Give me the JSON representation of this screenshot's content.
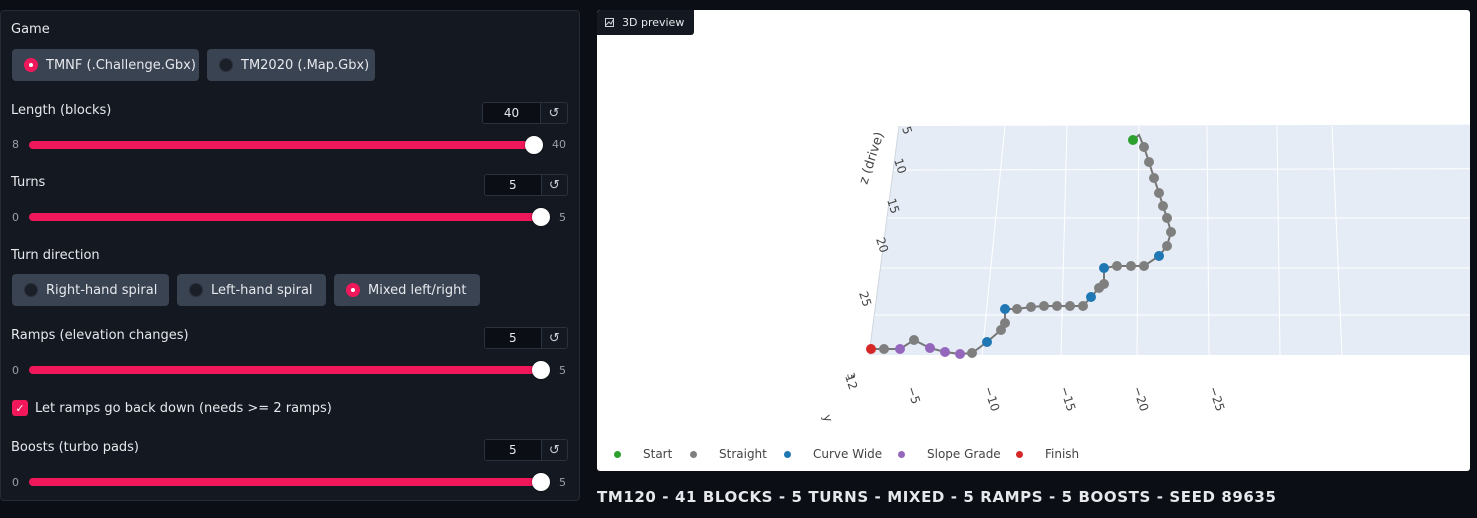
{
  "game": {
    "label": "Game",
    "options": [
      {
        "label": "TMNF (.Challenge.Gbx)",
        "selected": true
      },
      {
        "label": "TM2020 (.Map.Gbx)",
        "selected": false
      }
    ]
  },
  "length": {
    "label": "Length (blocks)",
    "value": "40",
    "min": "8",
    "max": "40",
    "fraction": 1.0
  },
  "turns": {
    "label": "Turns",
    "value": "5",
    "min": "0",
    "max": "5",
    "fraction": 1.0
  },
  "turn_direction": {
    "label": "Turn direction",
    "options": [
      {
        "label": "Right-hand spiral",
        "selected": false
      },
      {
        "label": "Left-hand spiral",
        "selected": false
      },
      {
        "label": "Mixed left/right",
        "selected": true
      }
    ]
  },
  "ramps": {
    "label": "Ramps (elevation changes)",
    "value": "5",
    "min": "0",
    "max": "5",
    "fraction": 1.0
  },
  "ramps_down": {
    "label": "Let ramps go back down (needs >= 2 ramps)",
    "checked": true
  },
  "boosts": {
    "label": "Boosts (turbo pads)",
    "value": "5",
    "min": "0",
    "max": "5",
    "fraction": 1.0
  },
  "reset_icon": "refresh-icon",
  "preview": {
    "tab_label": "3D preview",
    "icon": "chart-icon",
    "z_axis_title": "z (drive)",
    "z_ticks": [
      "5",
      "10",
      "15",
      "20",
      "25"
    ],
    "x_ticks": [
      "−5",
      "−10",
      "−15",
      "−20",
      "−25"
    ],
    "corner_ticks": [
      "12",
      "3"
    ],
    "y_stub": "y",
    "legend": [
      {
        "label": "Start",
        "color": "#2ca02c"
      },
      {
        "label": "Straight",
        "color": "#7f7f7f"
      },
      {
        "label": "Curve Wide",
        "color": "#1f77b4"
      },
      {
        "label": "Slope Grade",
        "color": "#9467bd"
      },
      {
        "label": "Finish",
        "color": "#d62728"
      }
    ]
  },
  "summary": "TM120 - 41 BLOCKS - 5 TURNS - MIXED - 5 RAMPS - 5 BOOSTS - SEED 89635",
  "colors": {
    "accent": "#f0185a",
    "panel": "#141820",
    "background": "#0b0f15"
  }
}
